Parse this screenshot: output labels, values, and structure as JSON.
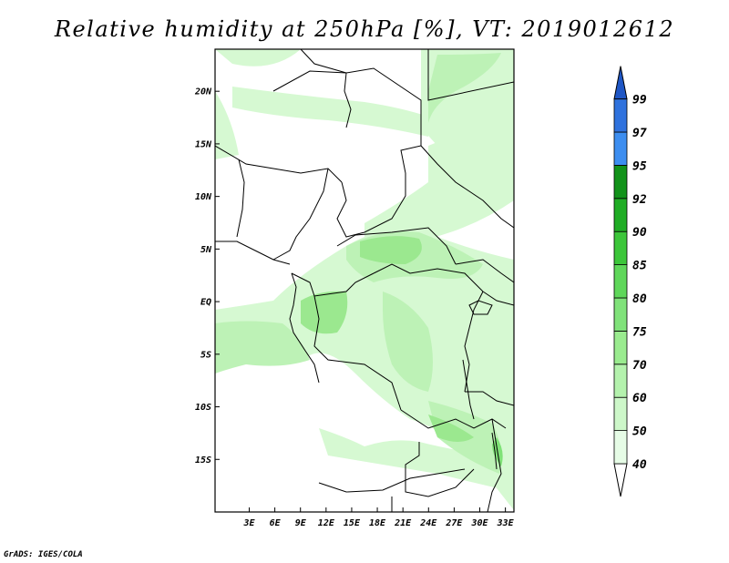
{
  "title": "Relative humidity at 250hPa [%], VT: 2019012612",
  "credit": "GrADS: IGES/COLA",
  "chart_data": {
    "type": "heatmap",
    "variable": "Relative humidity",
    "level": "250hPa",
    "unit": "%",
    "valid_time": "2019012612",
    "xlim": [
      -1,
      34
    ],
    "ylim": [
      -20,
      24
    ],
    "lon_ticks": [
      {
        "v": 3,
        "label": "3E"
      },
      {
        "v": 6,
        "label": "6E"
      },
      {
        "v": 9,
        "label": "9E"
      },
      {
        "v": 12,
        "label": "12E"
      },
      {
        "v": 15,
        "label": "15E"
      },
      {
        "v": 18,
        "label": "18E"
      },
      {
        "v": 21,
        "label": "21E"
      },
      {
        "v": 24,
        "label": "24E"
      },
      {
        "v": 27,
        "label": "27E"
      },
      {
        "v": 30,
        "label": "30E"
      },
      {
        "v": 33,
        "label": "33E"
      }
    ],
    "lat_ticks": [
      {
        "v": 20,
        "label": "20N"
      },
      {
        "v": 15,
        "label": "15N"
      },
      {
        "v": 10,
        "label": "10N"
      },
      {
        "v": 5,
        "label": "5N"
      },
      {
        "v": 0,
        "label": "EQ"
      },
      {
        "v": -5,
        "label": "5S"
      },
      {
        "v": -10,
        "label": "10S"
      },
      {
        "v": -15,
        "label": "15S"
      }
    ],
    "colorbar": {
      "levels": [
        "40",
        "50",
        "60",
        "70",
        "75",
        "80",
        "85",
        "90",
        "92",
        "95",
        "97",
        "99"
      ],
      "colors": [
        "#e6fce6",
        "#cdf7c9",
        "#b4f2ad",
        "#9aeb8f",
        "#80e27a",
        "#5fd75a",
        "#3cc63a",
        "#20ad25",
        "#12931a",
        "#3d8ef0",
        "#2f72dd",
        "#1e56c5"
      ],
      "under_color": "#ffffff",
      "over_color": "#1e56c5"
    }
  }
}
